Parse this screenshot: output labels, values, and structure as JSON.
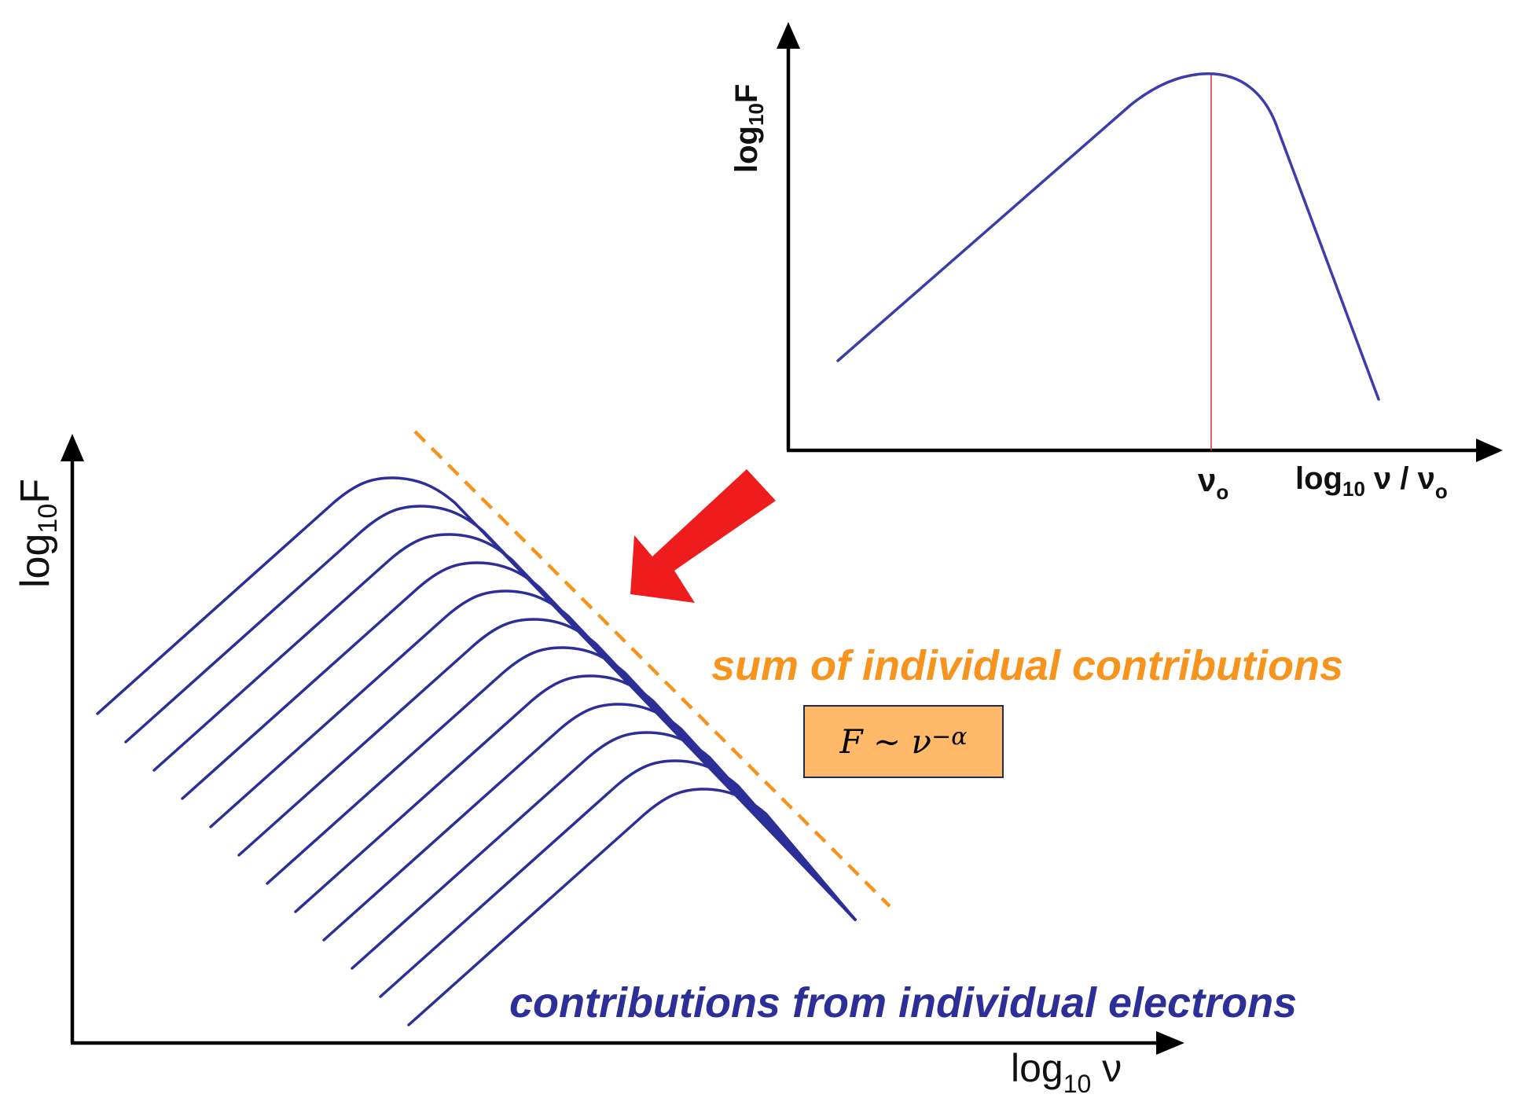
{
  "inset_plot": {
    "y_label": {
      "prefix": "log",
      "subscript": "10",
      "suffix": "F"
    },
    "x_label": {
      "prefix": "log",
      "subscript": "10",
      "middle": " ν / ν",
      "subscript2": "o"
    },
    "peak_label": {
      "main": "ν",
      "subscript": "o"
    },
    "curve_color": "#3C3DAA",
    "peak_line_color": "#E8293A"
  },
  "main_plot": {
    "y_label": {
      "prefix": "log",
      "subscript": "10",
      "suffix": "F"
    },
    "x_label": {
      "prefix": "log",
      "subscript": "10",
      "suffix": " ν"
    },
    "curve_count": 12,
    "curve_color": "#2D2F98"
  },
  "annotations": {
    "sum_label": "sum of individual contributions",
    "sum_color": "#F7941D",
    "electrons_label": "contributions from individual electrons",
    "electrons_color": "#2D2F98",
    "arrow_color": "#EE1C1C",
    "dashed_line_color": "#F7941D"
  },
  "formula": {
    "lhs": "F",
    "relation": " ∼ ",
    "base": "ν",
    "exponent": "−α",
    "box_color": "#FFB968"
  }
}
